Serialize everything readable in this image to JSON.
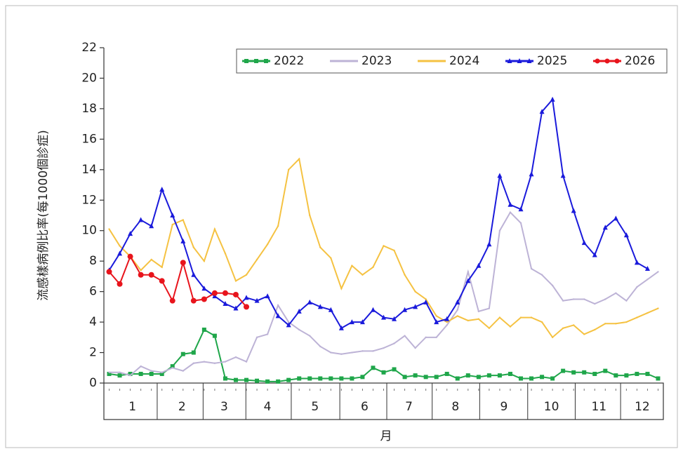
{
  "chart_data": {
    "type": "line",
    "y_label": "流感樣病例比率(每1000個診症)",
    "x_label": "月",
    "x": [
      1,
      2,
      3,
      4,
      5,
      6,
      7,
      8,
      9,
      10,
      11,
      12,
      13,
      14,
      15,
      16,
      17,
      18,
      19,
      20,
      21,
      22,
      23,
      24,
      25,
      26,
      27,
      28,
      29,
      30,
      31,
      32,
      33,
      34,
      35,
      36,
      37,
      38,
      39,
      40,
      41,
      42,
      43,
      44,
      45,
      46,
      47,
      48,
      49,
      50,
      51,
      52,
      53
    ],
    "xlim": [
      0.5,
      53.5
    ],
    "xticks": [
      {
        "value": 3.2,
        "label": "1"
      },
      {
        "value": 7.9,
        "label": "2"
      },
      {
        "value": 11.9,
        "label": "3"
      },
      {
        "value": 16.0,
        "label": "4"
      },
      {
        "value": 20.5,
        "label": "5"
      },
      {
        "value": 25.2,
        "label": "6"
      },
      {
        "value": 29.4,
        "label": "7"
      },
      {
        "value": 33.8,
        "label": "8"
      },
      {
        "value": 38.4,
        "label": "9"
      },
      {
        "value": 42.9,
        "label": "10"
      },
      {
        "value": 47.4,
        "label": "11"
      },
      {
        "value": 51.5,
        "label": "12"
      }
    ],
    "ylim": [
      0,
      22
    ],
    "yticks": [
      0,
      2,
      4,
      6,
      8,
      10,
      12,
      14,
      16,
      18,
      20,
      22
    ],
    "grid": false,
    "legend": "top-right",
    "series": [
      {
        "name": "2022",
        "color": "#1fa64a",
        "marker": "square",
        "values": [
          0.6,
          0.5,
          0.6,
          0.6,
          0.6,
          0.6,
          1.1,
          1.9,
          2.0,
          3.5,
          3.1,
          0.3,
          0.2,
          0.2,
          0.15,
          0.1,
          0.1,
          0.2,
          0.3,
          0.3,
          0.3,
          0.3,
          0.3,
          0.3,
          0.4,
          1.0,
          0.7,
          0.9,
          0.4,
          0.5,
          0.4,
          0.4,
          0.6,
          0.3,
          0.5,
          0.4,
          0.5,
          0.5,
          0.6,
          0.3,
          0.3,
          0.4,
          0.3,
          0.8,
          0.7,
          0.7,
          0.6,
          0.8,
          0.5,
          0.5,
          0.6,
          0.6,
          0.3
        ]
      },
      {
        "name": "2023",
        "color": "#bdb3d6",
        "marker": "none",
        "values": [
          0.7,
          0.7,
          0.5,
          1.1,
          0.8,
          0.7,
          1.0,
          0.8,
          1.3,
          1.4,
          1.3,
          1.4,
          1.7,
          1.4,
          3.0,
          3.2,
          5.1,
          4.0,
          3.5,
          3.1,
          2.4,
          2.0,
          1.9,
          2.0,
          2.1,
          2.1,
          2.3,
          2.6,
          3.1,
          2.3,
          3.0,
          3.0,
          3.8,
          4.8,
          7.3,
          4.7,
          4.9,
          10.0,
          11.2,
          10.5,
          7.5,
          7.1,
          6.4,
          5.4,
          5.5,
          5.5,
          5.2,
          5.5,
          5.9,
          5.4,
          6.3,
          6.8,
          7.3
        ]
      },
      {
        "name": "2024",
        "color": "#f5c242",
        "marker": "none",
        "values": [
          10.1,
          9.0,
          8.3,
          7.4,
          8.1,
          7.6,
          10.4,
          10.7,
          8.9,
          8.0,
          10.1,
          8.5,
          6.7,
          7.1,
          8.1,
          9.1,
          10.3,
          14.0,
          14.7,
          11.0,
          8.9,
          8.2,
          6.2,
          7.7,
          7.1,
          7.6,
          9.0,
          8.7,
          7.1,
          6.0,
          5.5,
          4.4,
          4.0,
          4.4,
          4.1,
          4.2,
          3.6,
          4.3,
          3.7,
          4.3,
          4.3,
          4.0,
          3.0,
          3.6,
          3.8,
          3.2,
          3.5,
          3.9,
          3.9,
          4.0,
          4.3,
          4.6,
          4.9
        ]
      },
      {
        "name": "2025",
        "color": "#1a1adb",
        "marker": "triangle",
        "values": [
          7.4,
          8.5,
          9.8,
          10.7,
          10.3,
          12.7,
          11.0,
          9.3,
          7.1,
          6.2,
          5.7,
          5.2,
          4.9,
          5.6,
          5.4,
          5.7,
          4.4,
          3.8,
          4.7,
          5.3,
          5.0,
          4.8,
          3.6,
          4.0,
          4.0,
          4.8,
          4.3,
          4.2,
          4.8,
          5.0,
          5.3,
          4.0,
          4.2,
          5.3,
          6.7,
          7.7,
          9.1,
          13.6,
          11.7,
          11.4,
          13.7,
          17.8,
          18.6,
          13.6,
          11.3,
          9.2,
          8.4,
          10.2,
          10.8,
          9.7,
          7.9,
          7.5,
          null
        ]
      },
      {
        "name": "2026",
        "color": "#e8141c",
        "marker": "circle",
        "values": [
          7.3,
          6.5,
          8.3,
          7.1,
          7.1,
          6.7,
          5.4,
          7.9,
          5.4,
          5.5,
          5.9,
          5.9,
          5.8,
          5.0,
          null,
          null,
          null,
          null,
          null,
          null,
          null,
          null,
          null,
          null,
          null,
          null,
          null,
          null,
          null,
          null,
          null,
          null,
          null,
          null,
          null,
          null,
          null,
          null,
          null,
          null,
          null,
          null,
          null,
          null,
          null,
          null,
          null,
          null,
          null,
          null,
          null,
          null,
          null
        ]
      }
    ]
  }
}
